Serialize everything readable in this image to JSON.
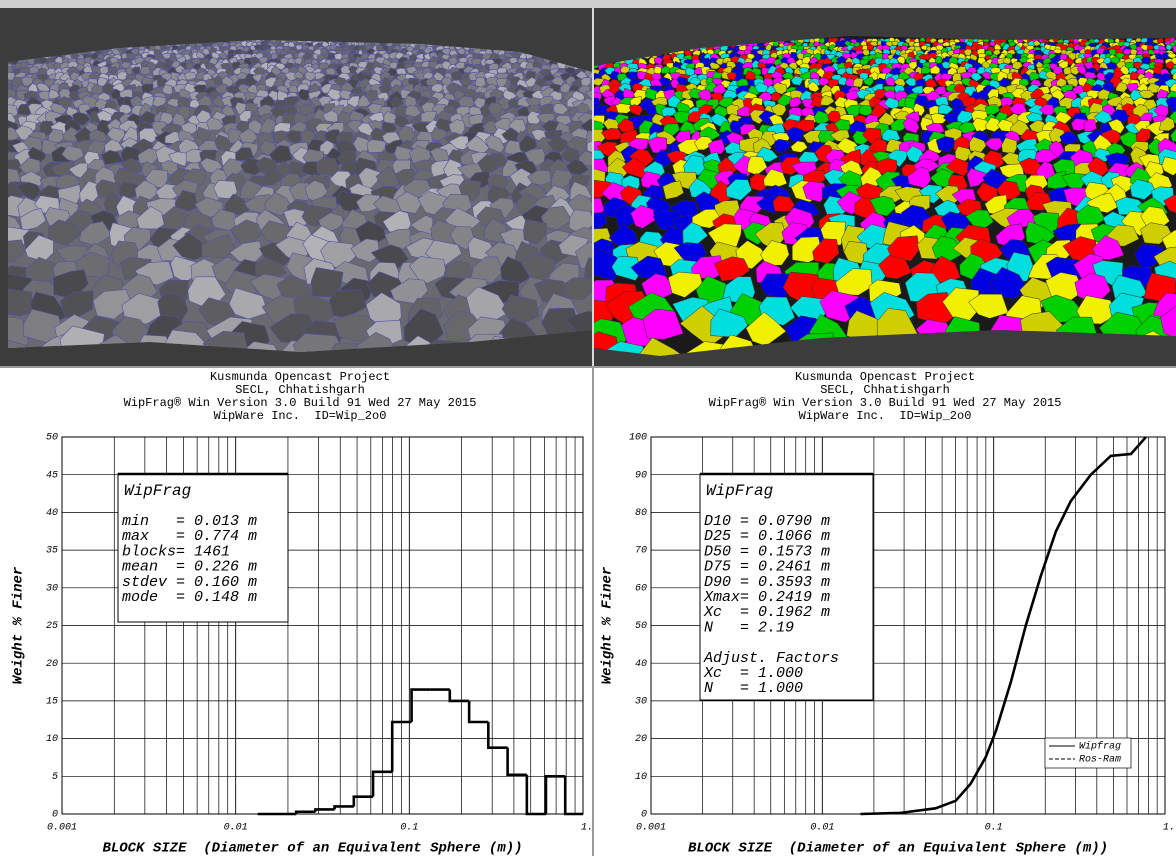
{
  "chart_data": [
    {
      "type": "histogram",
      "header": [
        "Kusmunda Opencast Project",
        "SECL, Chhatishgarh",
        "WipFrag® Win Version 3.0 Build 91 Wed 27 May 2015",
        "WipWare Inc.  ID=Wip_2o0"
      ],
      "x_label": "BLOCK SIZE  (Diameter of an Equivalent Sphere (m))",
      "y_label": "Weight % Finer",
      "log_x": true,
      "grid": true,
      "xlim": [
        0.001,
        1
      ],
      "xticks": [
        0.001,
        0.01,
        0.1,
        {
          "value": 1,
          "label": "1."
        }
      ],
      "ylim": [
        0,
        50
      ],
      "yticks": [
        0,
        5,
        10,
        15,
        20,
        25,
        30,
        35,
        40,
        45,
        50
      ],
      "bins": [
        0.0134,
        0.0173,
        0.0223,
        0.0288,
        0.0371,
        0.0479,
        0.0618,
        0.0797,
        0.103,
        0.133,
        0.171,
        0.221,
        0.285,
        0.368,
        0.475,
        0.612,
        0.79,
        1.0
      ],
      "values": [
        0,
        0,
        0.3,
        0.6,
        1,
        2.3,
        5.6,
        12.2,
        16.5,
        16.5,
        15,
        12.2,
        8.8,
        5.2,
        0,
        5,
        0
      ],
      "color": "#000000",
      "annotation": {
        "title": "WipFrag",
        "lines": [
          "min   = 0.013 m",
          "max   = 0.774 m",
          "blocks= 1461",
          "mean  = 0.226 m",
          "stdev = 0.160 m",
          "mode  = 0.148 m"
        ]
      }
    },
    {
      "type": "line",
      "header": [
        "Kusmunda Opencast Project",
        "SECL, Chhatishgarh",
        "WipFrag® Win Version 3.0 Build 91 Wed 27 May 2015",
        "WipWare Inc.  ID=Wip_2o0"
      ],
      "x_label": "BLOCK SIZE  (Diameter of an Equivalent Sphere (m))",
      "y_label": "Weight % Finer",
      "log_x": true,
      "grid": true,
      "legend": "lower right",
      "xlim": [
        0.001,
        1
      ],
      "xticks": [
        0.001,
        0.01,
        0.1,
        {
          "value": 1,
          "label": "1."
        }
      ],
      "ylim": [
        0,
        100
      ],
      "yticks": [
        0,
        10,
        20,
        30,
        40,
        50,
        60,
        70,
        80,
        90,
        100
      ],
      "x": [
        0.0167,
        0.0286,
        0.0458,
        0.06,
        0.0733,
        0.0897,
        0.103,
        0.126,
        0.154,
        0.188,
        0.231,
        0.282,
        0.369,
        0.483,
        0.633,
        0.774
      ],
      "series": [
        {
          "name": "Wipfrag",
          "color": "#000000",
          "dash": false,
          "values": [
            0,
            0.3,
            1.5,
            3.5,
            8,
            15,
            22,
            35,
            50,
            63,
            75,
            83,
            90,
            95,
            95.5,
            100
          ]
        },
        {
          "name": "Ros-Ram",
          "color": "#000000",
          "dash": true,
          "values": [
            0,
            0.3,
            1.5,
            3.5,
            8,
            15,
            22,
            35,
            50,
            63,
            75,
            83,
            90,
            95,
            95.5,
            100
          ]
        }
      ],
      "annotation": {
        "title": "WipFrag",
        "lines": [
          "D10 = 0.0790 m",
          "D25 = 0.1066 m",
          "D50 = 0.1573 m",
          "D75 = 0.2461 m",
          "D90 = 0.3593 m",
          "Xmax= 0.2419 m",
          "Xc  = 0.1962 m",
          "N   = 2.19"
        ],
        "factors_title": "Adjust. Factors",
        "factors": [
          "Xc  = 1.000",
          "N   = 1.000"
        ]
      }
    }
  ]
}
